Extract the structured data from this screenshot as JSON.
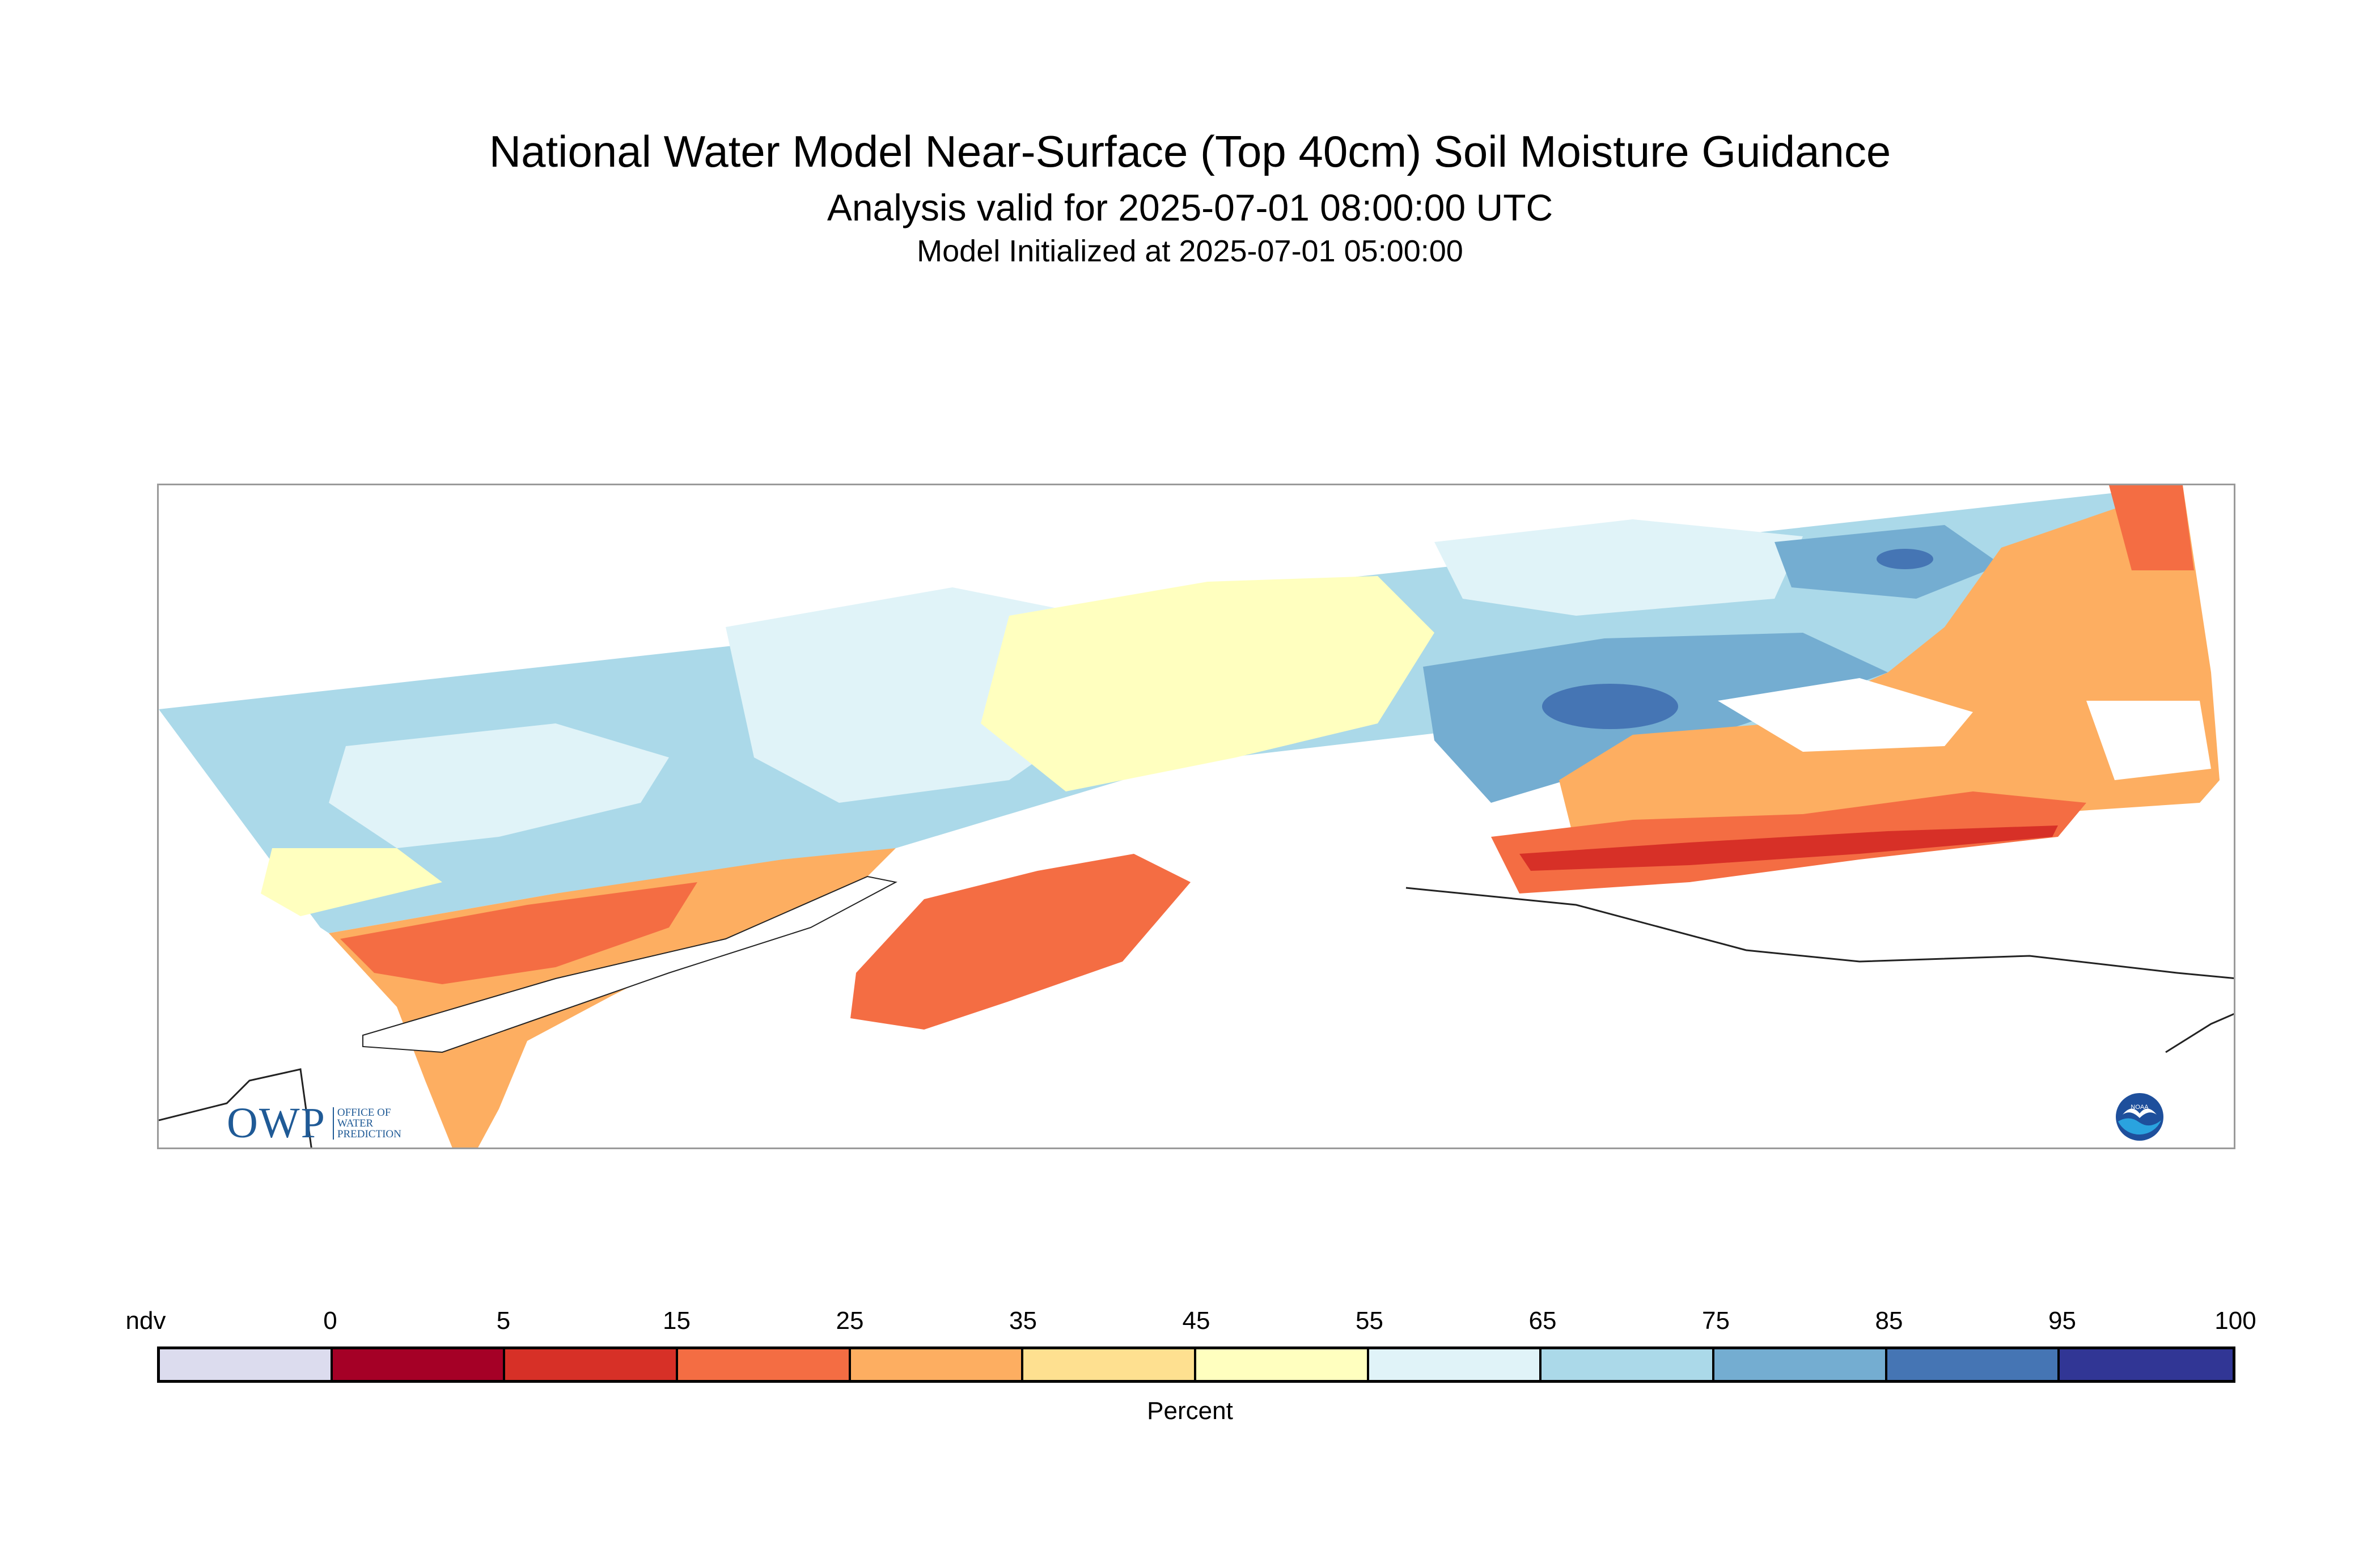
{
  "title": "National Water Model Near-Surface (Top 40cm) Soil Moisture Guidance",
  "subtitle": "Analysis valid for 2025-07-01 08:00:00 UTC",
  "init_line": "Model Initialized at 2025-07-01 05:00:00",
  "logos": {
    "owp_letters": "OWP",
    "owp_words": [
      "OFFICE OF",
      "WATER",
      "PREDICTION"
    ],
    "noaa_text": "NOAA"
  },
  "colorbar": {
    "unit_label": "Percent",
    "tick_labels": [
      "ndv",
      "0",
      "5",
      "15",
      "25",
      "35",
      "45",
      "55",
      "65",
      "75",
      "85",
      "95",
      "100"
    ],
    "bins": [
      {
        "label": "ndv",
        "color": "#dcdcee"
      },
      {
        "label": "0-5",
        "color": "#a50026"
      },
      {
        "label": "5-15",
        "color": "#d73027"
      },
      {
        "label": "15-25",
        "color": "#f46d43"
      },
      {
        "label": "25-35",
        "color": "#fdae61"
      },
      {
        "label": "35-45",
        "color": "#fee090"
      },
      {
        "label": "45-55",
        "color": "#ffffbf"
      },
      {
        "label": "55-65",
        "color": "#e0f3f8"
      },
      {
        "label": "65-75",
        "color": "#abd9e9"
      },
      {
        "label": "75-85",
        "color": "#74add1"
      },
      {
        "label": "85-95",
        "color": "#4575b4"
      },
      {
        "label": "95-100",
        "color": "#313695"
      }
    ]
  },
  "map_colors": {
    "ocean": "#ffffff",
    "coast": "#222222",
    "wet_base": "#abd9e9",
    "very_wet": "#74add1",
    "saturated": "#4575b4",
    "moist": "#e0f3f8",
    "neutral": "#ffffbf",
    "dry": "#fdae61",
    "drier": "#f46d43",
    "very_dry": "#d73027"
  }
}
